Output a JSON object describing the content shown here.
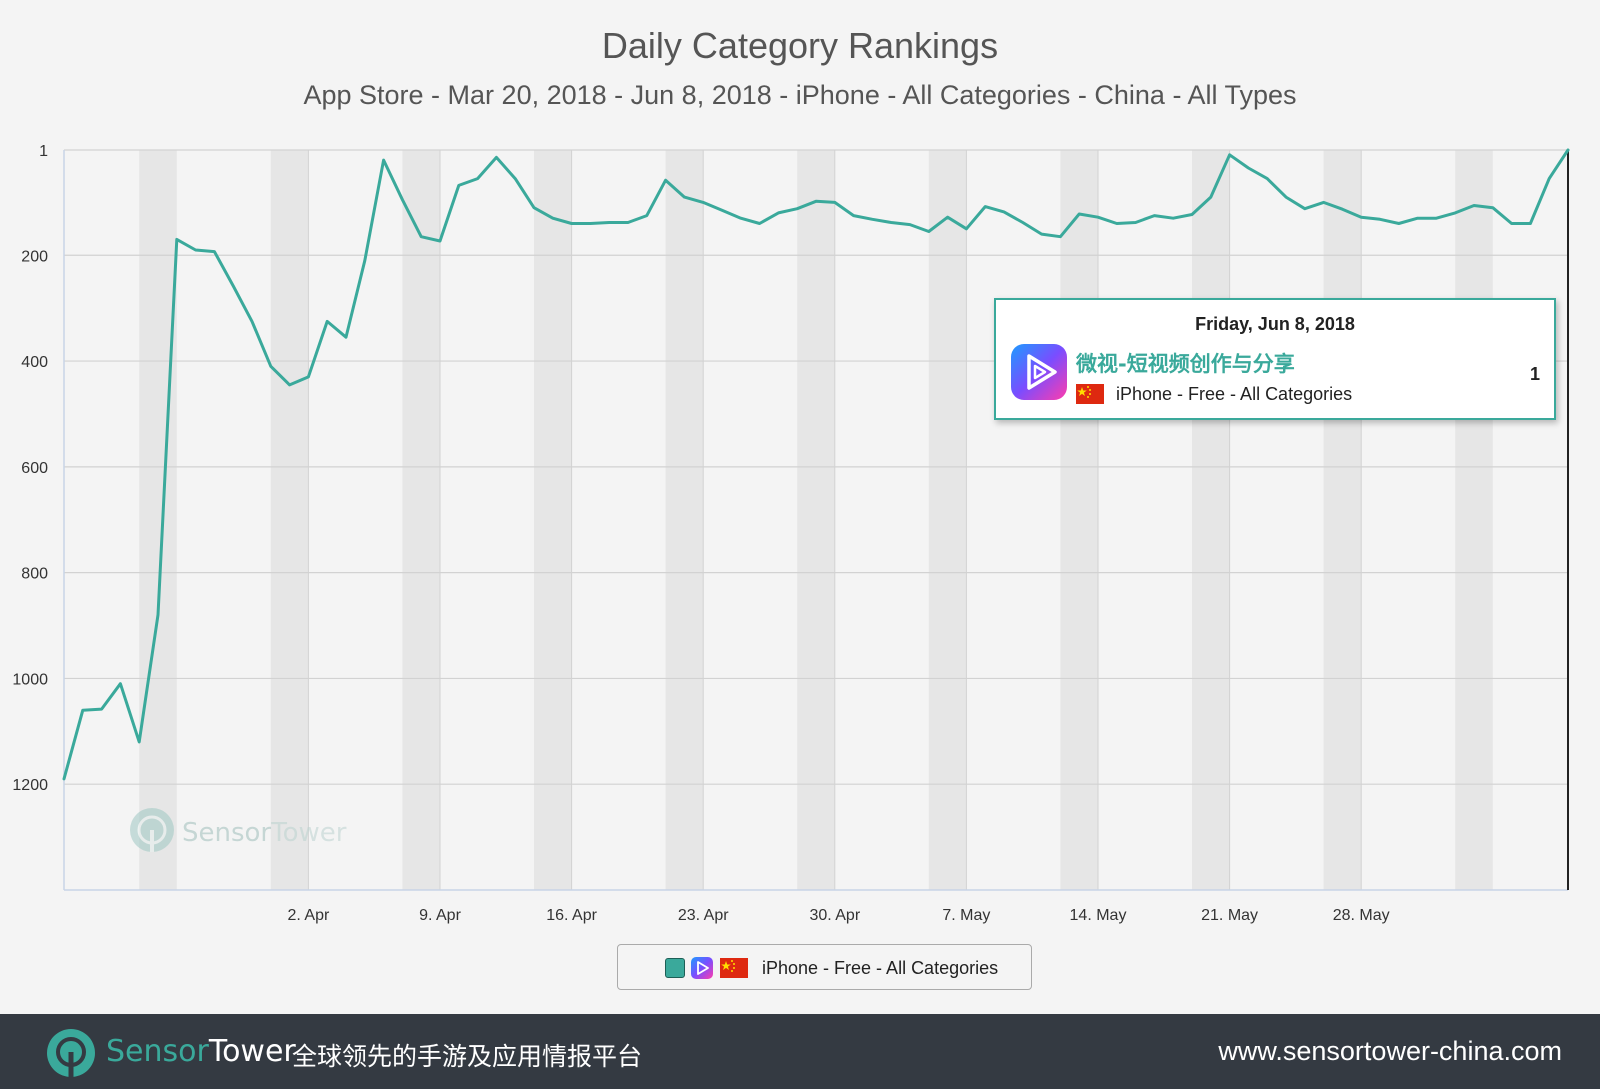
{
  "chart_data": {
    "type": "line",
    "title": "Daily Category Rankings",
    "subtitle": "App Store - Mar 20, 2018 - Jun 8, 2018 - iPhone - All Categories - China - All Types",
    "y_inverted": true,
    "ylim": [
      1,
      1400
    ],
    "yticks": [
      "1",
      "200",
      "400",
      "600",
      "800",
      "1000",
      "1200"
    ],
    "ytick_values": [
      1,
      200,
      400,
      600,
      800,
      1000,
      1200
    ],
    "xlim": [
      "2018-03-20",
      "2018-06-08"
    ],
    "xticks": [
      "2. Apr",
      "9. Apr",
      "16. Apr",
      "23. Apr",
      "30. Apr",
      "7. May",
      "14. May",
      "21. May",
      "28. May"
    ],
    "xtick_dates": [
      "2018-04-02",
      "2018-04-09",
      "2018-04-16",
      "2018-04-23",
      "2018-04-30",
      "2018-05-07",
      "2018-05-14",
      "2018-05-21",
      "2018-05-28"
    ],
    "grid": true,
    "weekend_bands": true,
    "legend_position": "bottom-center",
    "series": [
      {
        "name": "iPhone - Free - All Categories",
        "color": "#3aa99b",
        "x": [
          "2018-03-20",
          "2018-03-21",
          "2018-03-22",
          "2018-03-23",
          "2018-03-24",
          "2018-03-25",
          "2018-03-26",
          "2018-03-27",
          "2018-03-28",
          "2018-03-29",
          "2018-03-30",
          "2018-03-31",
          "2018-04-01",
          "2018-04-02",
          "2018-04-03",
          "2018-04-04",
          "2018-04-05",
          "2018-04-06",
          "2018-04-07",
          "2018-04-08",
          "2018-04-09",
          "2018-04-10",
          "2018-04-11",
          "2018-04-12",
          "2018-04-13",
          "2018-04-14",
          "2018-04-15",
          "2018-04-16",
          "2018-04-17",
          "2018-04-18",
          "2018-04-19",
          "2018-04-20",
          "2018-04-21",
          "2018-04-22",
          "2018-04-23",
          "2018-04-24",
          "2018-04-25",
          "2018-04-26",
          "2018-04-27",
          "2018-04-28",
          "2018-04-29",
          "2018-04-30",
          "2018-05-01",
          "2018-05-02",
          "2018-05-03",
          "2018-05-04",
          "2018-05-05",
          "2018-05-06",
          "2018-05-07",
          "2018-05-08",
          "2018-05-09",
          "2018-05-10",
          "2018-05-11",
          "2018-05-12",
          "2018-05-13",
          "2018-05-14",
          "2018-05-15",
          "2018-05-16",
          "2018-05-17",
          "2018-05-18",
          "2018-05-19",
          "2018-05-20",
          "2018-05-21",
          "2018-05-22",
          "2018-05-23",
          "2018-05-24",
          "2018-05-25",
          "2018-05-26",
          "2018-05-27",
          "2018-05-28",
          "2018-05-29",
          "2018-05-30",
          "2018-05-31",
          "2018-06-01",
          "2018-06-02",
          "2018-06-03",
          "2018-06-04",
          "2018-06-05",
          "2018-06-06",
          "2018-06-07",
          "2018-06-08"
        ],
        "values": [
          1190,
          1060,
          1058,
          1010,
          1120,
          880,
          170,
          190,
          193,
          258,
          325,
          410,
          445,
          430,
          325,
          355,
          210,
          20,
          95,
          165,
          173,
          68,
          55,
          15,
          55,
          110,
          130,
          140,
          140,
          138,
          138,
          125,
          58,
          90,
          100,
          115,
          130,
          140,
          120,
          112,
          98,
          100,
          125,
          132,
          138,
          142,
          155,
          128,
          150,
          108,
          118,
          138,
          160,
          165,
          122,
          128,
          140,
          138,
          125,
          130,
          123,
          90,
          10,
          35,
          55,
          90,
          112,
          100,
          113,
          128,
          132,
          140,
          130,
          130,
          120,
          106,
          110,
          140,
          140,
          55,
          1
        ]
      }
    ]
  },
  "tooltip": {
    "date": "Friday, Jun 8, 2018",
    "app_name": "微视-短视频创作与分享",
    "series_label": "iPhone - Free - All Categories",
    "rank": "1",
    "border_color": "#3aa99b"
  },
  "legend": {
    "label": "iPhone - Free - All Categories",
    "icons": [
      "series-swatch",
      "app-icon",
      "china-flag-icon"
    ]
  },
  "watermark": {
    "brand_sensor": "Sensor",
    "brand_tower": "Tower"
  },
  "footer": {
    "brand_sensor": "Sensor",
    "brand_tower": "Tower",
    "tagline": "全球领先的手游及应用情报平台",
    "url": "www.sensortower-china.com"
  },
  "colors": {
    "line": "#3aa99b",
    "footer_bg": "#343a42",
    "background": "#f4f4f4",
    "weekend_band": "#e6e6e6",
    "grid": "#d2d2d2"
  }
}
